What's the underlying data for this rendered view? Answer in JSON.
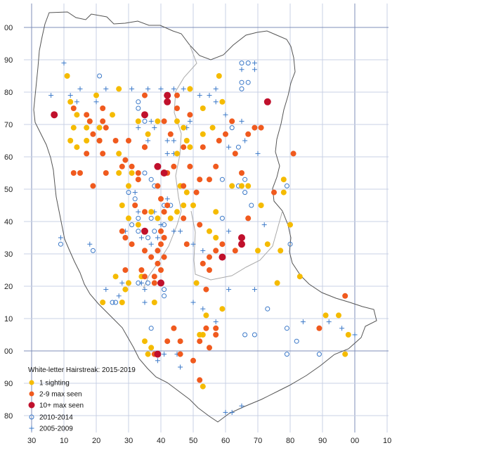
{
  "y_labels": [
    "00",
    "90",
    "80",
    "70",
    "60",
    "50",
    "40",
    "30",
    "20",
    "10",
    "00",
    "90",
    "80"
  ],
  "x_labels": [
    "30",
    "10",
    "20",
    "30",
    "40",
    "50",
    "60",
    "70",
    "80",
    "90",
    "00",
    "10"
  ],
  "legend": {
    "title": "White-letter Hairstreak:  2015-2019",
    "items": [
      {
        "label": "1 sighting",
        "symbol": "dot",
        "color": "#f5bb00"
      },
      {
        "label": "2-9 max seen",
        "symbol": "dot",
        "color": "#f05a1e"
      },
      {
        "label": "10+ max seen",
        "symbol": "dot",
        "color": "#c0102c"
      },
      {
        "label": "2010-2014",
        "symbol": "circle",
        "color": "#3a78c8"
      },
      {
        "label": "2005-2009",
        "symbol": "plus",
        "color": "#3a78c8"
      }
    ]
  },
  "colors": {
    "grid": "#c8d0e4",
    "grid_major": "#7f8fb8",
    "boundary": "#555555",
    "inner_boundary": "#a0a0a0"
  },
  "chart_data": {
    "type": "scatter",
    "x_range": [
      -12,
      100
    ],
    "y_range": [
      -20,
      112
    ],
    "series": [
      {
        "name": "1 sighting",
        "points": [
          [
            11,
            85
          ],
          [
            12,
            77
          ],
          [
            14,
            73
          ],
          [
            18,
            71
          ],
          [
            13,
            69
          ],
          [
            17,
            69
          ],
          [
            21,
            69
          ],
          [
            12,
            65
          ],
          [
            17,
            65
          ],
          [
            21,
            65
          ],
          [
            14,
            63
          ],
          [
            27,
            61
          ],
          [
            27,
            55
          ],
          [
            31,
            55
          ],
          [
            30,
            51
          ],
          [
            28,
            45
          ],
          [
            30,
            41
          ],
          [
            33,
            39
          ],
          [
            37,
            43
          ],
          [
            39,
            41
          ],
          [
            30,
            21
          ],
          [
            38,
            15
          ],
          [
            28,
            15
          ],
          [
            22,
            15
          ],
          [
            35,
            3
          ],
          [
            37,
            1
          ],
          [
            36,
            -1
          ],
          [
            46,
            51
          ],
          [
            48,
            49
          ],
          [
            47,
            45
          ],
          [
            45,
            43
          ],
          [
            41,
            43
          ],
          [
            43,
            41
          ],
          [
            50,
            45
          ],
          [
            55,
            37
          ],
          [
            57,
            43
          ],
          [
            57,
            35
          ],
          [
            62,
            51
          ],
          [
            65,
            51
          ],
          [
            67,
            51
          ],
          [
            71,
            45
          ],
          [
            70,
            31
          ],
          [
            73,
            33
          ],
          [
            78,
            53
          ],
          [
            78,
            49
          ],
          [
            80,
            39
          ],
          [
            77,
            31
          ],
          [
            76,
            21
          ],
          [
            83,
            23
          ],
          [
            91,
            11
          ],
          [
            95,
            11
          ],
          [
            98,
            5
          ],
          [
            97,
            -1
          ],
          [
            58,
            85
          ],
          [
            59,
            77
          ],
          [
            49,
            81
          ],
          [
            53,
            75
          ],
          [
            56,
            69
          ],
          [
            53,
            67
          ],
          [
            27,
            81
          ],
          [
            20,
            79
          ],
          [
            25,
            73
          ],
          [
            33,
            71
          ],
          [
            36,
            67
          ],
          [
            39,
            71
          ],
          [
            45,
            71
          ],
          [
            47,
            69
          ],
          [
            48,
            65
          ],
          [
            49,
            63
          ],
          [
            45,
            61
          ],
          [
            26,
            23
          ],
          [
            29,
            19
          ],
          [
            34,
            23
          ],
          [
            53,
            -11
          ],
          [
            51,
            21
          ],
          [
            54,
            11
          ],
          [
            53,
            5
          ],
          [
            52,
            5
          ],
          [
            59,
            13
          ]
        ]
      },
      {
        "name": "2-9 max seen",
        "points": [
          [
            13,
            75
          ],
          [
            17,
            73
          ],
          [
            18,
            71
          ],
          [
            22,
            75
          ],
          [
            22,
            71
          ],
          [
            23,
            69
          ],
          [
            19,
            67
          ],
          [
            21,
            65
          ],
          [
            17,
            61
          ],
          [
            15,
            55
          ],
          [
            23,
            55
          ],
          [
            29,
            59
          ],
          [
            33,
            53
          ],
          [
            31,
            57
          ],
          [
            35,
            63
          ],
          [
            32,
            45
          ],
          [
            35,
            43
          ],
          [
            28,
            37
          ],
          [
            31,
            33
          ],
          [
            29,
            35
          ],
          [
            35,
            31
          ],
          [
            37,
            29
          ],
          [
            39,
            27
          ],
          [
            41,
            29
          ],
          [
            39,
            31
          ],
          [
            34,
            25
          ],
          [
            40,
            25
          ],
          [
            38,
            23
          ],
          [
            38,
            21
          ],
          [
            35,
            23
          ],
          [
            40,
            33
          ],
          [
            40,
            37
          ],
          [
            41,
            43
          ],
          [
            42,
            45
          ],
          [
            40,
            47
          ],
          [
            39,
            51
          ],
          [
            42,
            55
          ],
          [
            44,
            57
          ],
          [
            47,
            51
          ],
          [
            41,
            35
          ],
          [
            48,
            33
          ],
          [
            52,
            39
          ],
          [
            55,
            29
          ],
          [
            53,
            27
          ],
          [
            57,
            31
          ],
          [
            59,
            33
          ],
          [
            63,
            31
          ],
          [
            55,
            25
          ],
          [
            54,
            19
          ],
          [
            52,
            53
          ],
          [
            55,
            53
          ],
          [
            57,
            57
          ],
          [
            63,
            61
          ],
          [
            65,
            55
          ],
          [
            67,
            67
          ],
          [
            71,
            69
          ],
          [
            69,
            69
          ],
          [
            75,
            49
          ],
          [
            81,
            61
          ],
          [
            67,
            41
          ],
          [
            89,
            7
          ],
          [
            97,
            17
          ],
          [
            57,
            7
          ],
          [
            57,
            5
          ],
          [
            54,
            7
          ],
          [
            52,
            3
          ],
          [
            50,
            -3
          ],
          [
            46,
            3
          ],
          [
            44,
            7
          ],
          [
            42,
            3
          ],
          [
            46,
            -1
          ],
          [
            52,
            -9
          ],
          [
            38,
            -1
          ],
          [
            55,
            1
          ],
          [
            47,
            41
          ],
          [
            51,
            49
          ],
          [
            49,
            57
          ],
          [
            53,
            63
          ],
          [
            47,
            63
          ],
          [
            43,
            67
          ],
          [
            41,
            71
          ],
          [
            45,
            75
          ],
          [
            49,
            73
          ],
          [
            45,
            79
          ],
          [
            35,
            79
          ],
          [
            35,
            63
          ],
          [
            30,
            65
          ],
          [
            26,
            65
          ],
          [
            22,
            61
          ],
          [
            28,
            57
          ],
          [
            33,
            55
          ],
          [
            19,
            51
          ],
          [
            13,
            55
          ],
          [
            29,
            25
          ],
          [
            58,
            65
          ],
          [
            60,
            67
          ],
          [
            62,
            71
          ]
        ]
      },
      {
        "name": "10+ max seen",
        "points": [
          [
            7,
            73
          ],
          [
            35,
            73
          ],
          [
            42,
            79
          ],
          [
            42,
            77
          ],
          [
            73,
            77
          ],
          [
            39,
            57
          ],
          [
            41,
            55
          ],
          [
            35,
            37
          ],
          [
            40,
            21
          ],
          [
            39,
            -1
          ],
          [
            65,
            33
          ],
          [
            65,
            35
          ],
          [
            59,
            29
          ]
        ]
      },
      {
        "name": "2010-2014",
        "points": [
          [
            21,
            85
          ],
          [
            33,
            77
          ],
          [
            33,
            75
          ],
          [
            35,
            71
          ],
          [
            26,
            65
          ],
          [
            27,
            55
          ],
          [
            35,
            55
          ],
          [
            37,
            53
          ],
          [
            38,
            51
          ],
          [
            30,
            49
          ],
          [
            32,
            47
          ],
          [
            35,
            43
          ],
          [
            33,
            41
          ],
          [
            31,
            39
          ],
          [
            33,
            37
          ],
          [
            36,
            35
          ],
          [
            38,
            37
          ],
          [
            41,
            39
          ],
          [
            37,
            41
          ],
          [
            41,
            45
          ],
          [
            43,
            45
          ],
          [
            26,
            15
          ],
          [
            33,
            21
          ],
          [
            36,
            21
          ],
          [
            41,
            17
          ],
          [
            41,
            19
          ],
          [
            37,
            7
          ],
          [
            59,
            53
          ],
          [
            59,
            41
          ],
          [
            64,
            51
          ],
          [
            66,
            49
          ],
          [
            66,
            53
          ],
          [
            68,
            45
          ],
          [
            64,
            63
          ],
          [
            62,
            69
          ],
          [
            65,
            81
          ],
          [
            65,
            83
          ],
          [
            67,
            83
          ],
          [
            67,
            89
          ],
          [
            65,
            89
          ],
          [
            79,
            51
          ],
          [
            80,
            33
          ],
          [
            73,
            13
          ],
          [
            79,
            7
          ],
          [
            79,
            -1
          ],
          [
            82,
            3
          ],
          [
            89,
            -1
          ],
          [
            69,
            5
          ],
          [
            66,
            5
          ],
          [
            9,
            33
          ],
          [
            19,
            31
          ],
          [
            25,
            15
          ]
        ]
      },
      {
        "name": "2005-2009",
        "points": [
          [
            10,
            89
          ],
          [
            15,
            81
          ],
          [
            12,
            79
          ],
          [
            6,
            79
          ],
          [
            14,
            77
          ],
          [
            20,
            77
          ],
          [
            23,
            81
          ],
          [
            31,
            81
          ],
          [
            36,
            81
          ],
          [
            40,
            81
          ],
          [
            44,
            81
          ],
          [
            47,
            81
          ],
          [
            52,
            79
          ],
          [
            55,
            79
          ],
          [
            57,
            77
          ],
          [
            60,
            73
          ],
          [
            57,
            81
          ],
          [
            65,
            87
          ],
          [
            69,
            87
          ],
          [
            69,
            89
          ],
          [
            66,
            65
          ],
          [
            61,
            63
          ],
          [
            65,
            71
          ],
          [
            70,
            61
          ],
          [
            72,
            39
          ],
          [
            69,
            19
          ],
          [
            61,
            37
          ],
          [
            53,
            31
          ],
          [
            50,
            33
          ],
          [
            46,
            37
          ],
          [
            40,
            37
          ],
          [
            39,
            35
          ],
          [
            37,
            33
          ],
          [
            34,
            35
          ],
          [
            29,
            37
          ],
          [
            35,
            19
          ],
          [
            35,
            15
          ],
          [
            34,
            21
          ],
          [
            28,
            21
          ],
          [
            27,
            17
          ],
          [
            23,
            19
          ],
          [
            18,
            33
          ],
          [
            9,
            35
          ],
          [
            50,
            15
          ],
          [
            53,
            13
          ],
          [
            57,
            9
          ],
          [
            61,
            19
          ],
          [
            84,
            9
          ],
          [
            92,
            9
          ],
          [
            96,
            7
          ],
          [
            100,
            5
          ],
          [
            65,
            -17
          ],
          [
            62,
            -19
          ],
          [
            60,
            -19
          ],
          [
            41,
            -1
          ],
          [
            39,
            -3
          ],
          [
            42,
            61
          ],
          [
            44,
            61
          ],
          [
            42,
            65
          ],
          [
            44,
            65
          ],
          [
            36,
            65
          ],
          [
            38,
            69
          ],
          [
            48,
            69
          ],
          [
            49,
            71
          ],
          [
            40,
            39
          ],
          [
            44,
            37
          ],
          [
            38,
            43
          ],
          [
            42,
            47
          ],
          [
            32,
            49
          ],
          [
            33,
            43
          ],
          [
            37,
            71
          ],
          [
            33,
            69
          ],
          [
            45,
            -1
          ],
          [
            46,
            -5
          ]
        ]
      }
    ]
  }
}
